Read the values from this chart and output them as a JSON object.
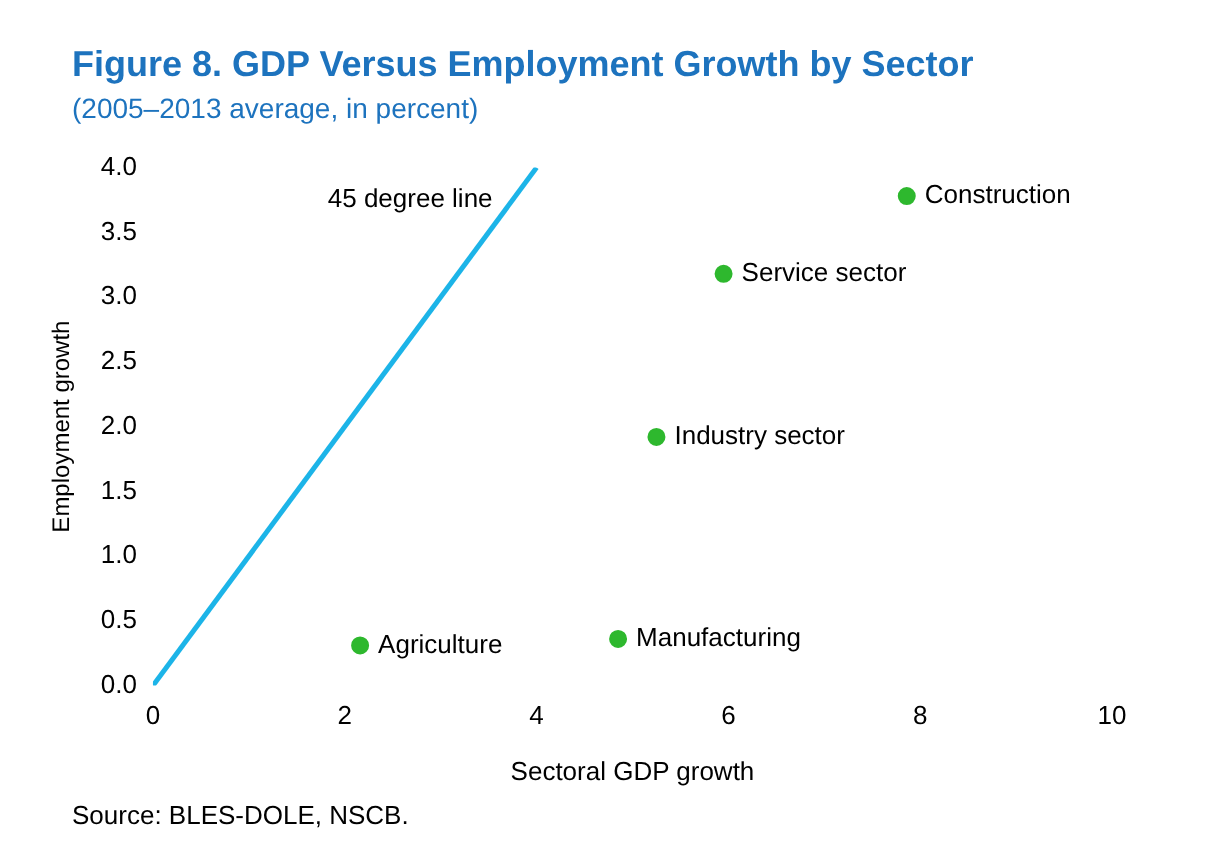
{
  "chart_data": {
    "type": "scatter",
    "title": "Figure 8. GDP Versus Employment Growth by Sector",
    "subtitle": "(2005–2013 average, in percent)",
    "xlabel": "Sectoral GDP growth",
    "ylabel": "Employment growth",
    "xlim": [
      0,
      10
    ],
    "xticks": [
      0,
      2,
      4,
      6,
      8,
      10
    ],
    "ylim": [
      0,
      4
    ],
    "yticks": [
      {
        "value": 0,
        "label": "0.0"
      },
      {
        "value": 0.5,
        "label": "0.5"
      },
      {
        "value": 1,
        "label": "1.0"
      },
      {
        "value": 1.5,
        "label": "1.5"
      },
      {
        "value": 2,
        "label": "2.0"
      },
      {
        "value": 2.5,
        "label": "2.5"
      },
      {
        "value": 3,
        "label": "3.0"
      },
      {
        "value": 3.5,
        "label": "3.5"
      },
      {
        "value": 4,
        "label": "4.0"
      }
    ],
    "grid": false,
    "legend": false,
    "marker": "circle",
    "series": [
      {
        "color": "#2eb82e",
        "x": [
          7.86,
          5.95,
          5.25,
          4.85,
          2.16
        ],
        "values": [
          3.78,
          3.18,
          1.92,
          0.36,
          0.31
        ]
      },
      {
        "type": "line",
        "name": "45 degree line",
        "color": "#1cb4e8",
        "x": [
          0,
          4
        ],
        "values": [
          0,
          4
        ],
        "marker": "none"
      }
    ],
    "annotations": [
      {
        "text": "Construction",
        "x": 7.86,
        "y": 3.78
      },
      {
        "text": "Service sector",
        "x": 5.95,
        "y": 3.18
      },
      {
        "text": "Industry sector",
        "x": 5.25,
        "y": 1.92
      },
      {
        "text": "Manufacturing",
        "x": 4.85,
        "y": 0.36
      },
      {
        "text": "Agriculture",
        "x": 2.16,
        "y": 0.31
      },
      "Source: BLES-DOLE, NSCB."
    ]
  }
}
